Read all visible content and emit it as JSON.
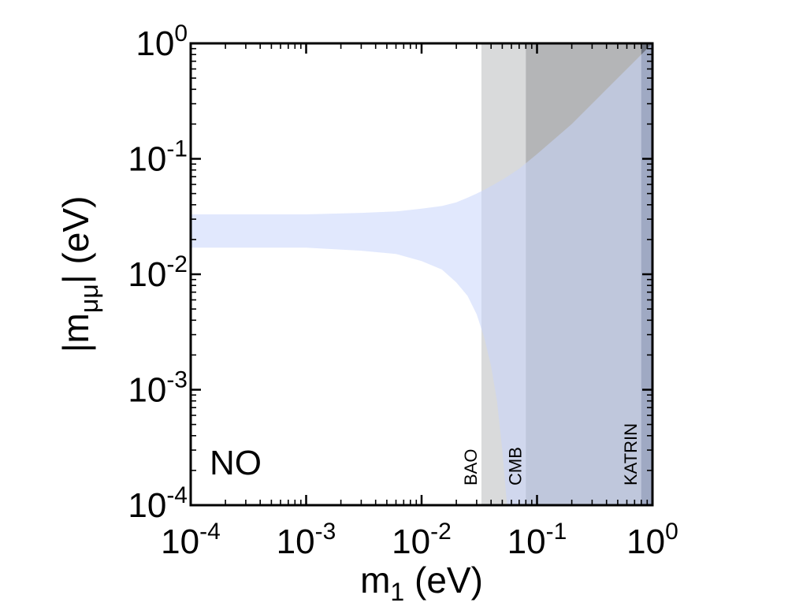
{
  "chart_data": {
    "type": "area",
    "xlabel": "m1 (eV)",
    "ylabel": "|mμμ| (eV)",
    "x_scale": "log",
    "y_scale": "log",
    "xlim": [
      0.0001,
      1
    ],
    "ylim": [
      0.0001,
      1
    ],
    "x_ticks": [
      {
        "value": 0.0001,
        "base": "10",
        "exp": "-4"
      },
      {
        "value": 0.001,
        "base": "10",
        "exp": "-3"
      },
      {
        "value": 0.01,
        "base": "10",
        "exp": "-2"
      },
      {
        "value": 0.1,
        "base": "10",
        "exp": "-1"
      },
      {
        "value": 1,
        "base": "10",
        "exp": "0"
      }
    ],
    "y_ticks": [
      {
        "value": 0.0001,
        "base": "10",
        "exp": "-4"
      },
      {
        "value": 0.001,
        "base": "10",
        "exp": "-3"
      },
      {
        "value": 0.01,
        "base": "10",
        "exp": "-2"
      },
      {
        "value": 0.1,
        "base": "10",
        "exp": "-1"
      },
      {
        "value": 1,
        "base": "10",
        "exp": "0"
      }
    ],
    "grid": false,
    "annotation": "NO",
    "band": {
      "color": "#c9d6fb",
      "x": [
        0.0001,
        0.0003,
        0.001,
        0.003,
        0.006,
        0.01,
        0.015,
        0.02,
        0.025,
        0.03,
        0.035,
        0.04,
        0.045,
        0.05,
        0.055,
        0.07,
        0.1,
        0.2,
        0.4,
        0.7,
        1.0
      ],
      "upper": [
        0.033,
        0.033,
        0.033,
        0.034,
        0.035,
        0.037,
        0.039,
        0.042,
        0.046,
        0.05,
        0.054,
        0.058,
        0.062,
        0.066,
        0.07,
        0.082,
        0.11,
        0.2,
        0.4,
        0.7,
        1.0
      ],
      "lower": [
        0.017,
        0.017,
        0.017,
        0.016,
        0.015,
        0.013,
        0.011,
        0.0085,
        0.0065,
        0.0045,
        0.0028,
        0.0016,
        0.0008,
        0.0003,
        0.0001,
        0.0001,
        0.0001,
        0.0001,
        0.0001,
        0.0001,
        0.0001
      ]
    },
    "exclusions": [
      {
        "label": "BAO",
        "x_from": 0.033,
        "color": "#d9dadb"
      },
      {
        "label": "CMB",
        "x_from": 0.08,
        "color": "#b4b5b7"
      },
      {
        "label": "KATRIN",
        "x_from": 0.8,
        "color": "#6e737f"
      }
    ]
  }
}
